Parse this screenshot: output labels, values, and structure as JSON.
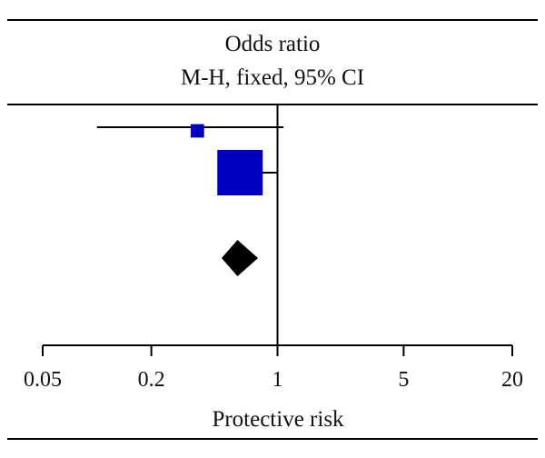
{
  "chart_data": {
    "type": "forest",
    "header": {
      "line1": "Odds ratio",
      "line2": "M-H, fixed, 95% CI"
    },
    "xlabel": "Protective risk",
    "x_scale": "log",
    "xlim": [
      0.05,
      20
    ],
    "x_ticks": [
      {
        "value": 0.05,
        "label": "0.05"
      },
      {
        "value": 0.2,
        "label": "0.2"
      },
      {
        "value": 1,
        "label": "1"
      },
      {
        "value": 5,
        "label": "5"
      },
      {
        "value": 20,
        "label": "20"
      }
    ],
    "reference_line": 1,
    "studies": [
      {
        "or": 0.36,
        "ci_low": 0.1,
        "ci_high": 1.08,
        "weight": 8
      },
      {
        "or": 0.62,
        "ci_low": 0.53,
        "ci_high": 0.99,
        "weight": 92
      }
    ],
    "pooled": {
      "or": 0.6,
      "ci_low": 0.49,
      "ci_high": 0.78
    },
    "colors": {
      "study": "#0000c0",
      "pooled": "#000000",
      "lines": "#000000"
    }
  }
}
